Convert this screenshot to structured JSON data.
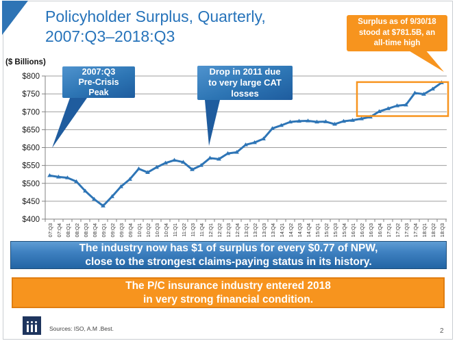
{
  "slide": {
    "title": "Policyholder Surplus, Quarterly,\n2007:Q3–2018:Q3",
    "page_number": "2"
  },
  "chart_data": {
    "type": "line",
    "title": "Policyholder Surplus, Quarterly, 2007:Q3–2018:Q3",
    "unit_label": "($ Billions)",
    "categories": [
      "07:Q3",
      "07:Q4",
      "08:Q1",
      "08:Q2",
      "08:Q3",
      "08:Q4",
      "09:Q1",
      "09:Q2",
      "09:Q3",
      "09:Q4",
      "10:Q1",
      "10:Q2",
      "10:Q3",
      "10:Q4",
      "11:Q1",
      "11:Q2",
      "11:Q3",
      "11:Q4",
      "12:Q1",
      "12:Q2",
      "12:Q3",
      "12:Q4",
      "13:Q1",
      "13:Q2",
      "13:Q3",
      "13:Q4",
      "14:Q1",
      "14:Q2",
      "14:Q3",
      "14:Q4",
      "15:Q1",
      "15:Q2",
      "15:Q3",
      "15:Q4",
      "16:Q1",
      "16:Q2",
      "16:Q3",
      "16:Q4",
      "17:Q1",
      "17:Q2",
      "17:Q3",
      "17:Q4",
      "18:Q1",
      "18:Q2",
      "18:Q3"
    ],
    "values": [
      521.8,
      517.9,
      515.6,
      505.0,
      478.5,
      455.6,
      437.1,
      463.0,
      490.8,
      511.5,
      540.7,
      530.5,
      544.8,
      556.9,
      564.7,
      559.2,
      538.6,
      550.3,
      570.7,
      567.8,
      583.5,
      586.9,
      607.7,
      614.0,
      624.4,
      653.4,
      662.0,
      671.6,
      673.9,
      674.7,
      671.7,
      672.4,
      665.4,
      673.7,
      676.3,
      680.6,
      685.5,
      700.9,
      709.0,
      717.0,
      719.4,
      752.5,
      749.3,
      763.7,
      781.5
    ],
    "ylim": [
      400,
      800
    ],
    "ytick_step": 50,
    "ytick_prefix": "$",
    "grid": true,
    "legend": "none",
    "line_color": "#2E75B6",
    "grid_color": "#9C9C9C",
    "highlight_box": {
      "start_category": "16:Q2",
      "end_category": "18:Q3",
      "value_range": [
        688,
        783
      ],
      "color": "#F7941E"
    }
  },
  "annotations": {
    "peak_callout": "2007:Q3\nPre-Crisis\nPeak",
    "cat_callout": "Drop in 2011 due\nto very large CAT\nlosses",
    "surplus_callout": "Surplus as of 9/30/18\nstood at $781.5B, an\nall-time high",
    "callout_blue": "#2D75B4",
    "callout_orange": "#F7941E"
  },
  "banners": {
    "npw": "The industry now has $1 of surplus for every $0.77 of NPW,\nclose to the strongest claims-paying status in its history.",
    "condition": "The P/C insurance industry entered 2018\nin very strong financial condition."
  },
  "footer": {
    "sources": "Sources: ISO, A.M .Best.",
    "logo_icon": "iii-logo"
  }
}
